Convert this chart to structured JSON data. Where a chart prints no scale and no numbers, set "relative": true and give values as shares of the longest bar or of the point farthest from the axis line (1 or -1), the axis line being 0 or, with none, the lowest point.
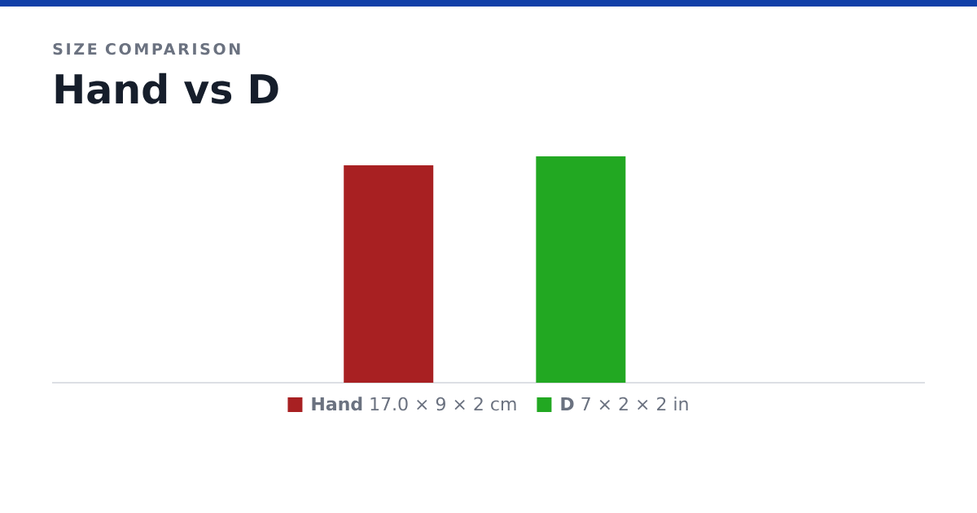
{
  "chart_data": {
    "type": "bar",
    "title": "Hand vs D",
    "subtitle": "SIZE COMPARISON",
    "categories": [
      null,
      null
    ],
    "relative": true,
    "values": [
      0.96,
      1
    ],
    "colors": [
      "#a82022",
      "#22a822"
    ],
    "annotations": [
      "**Hand** 17.0 × 9 × 2 cm",
      "**D** 7 × 2 × 2 in"
    ]
  }
}
